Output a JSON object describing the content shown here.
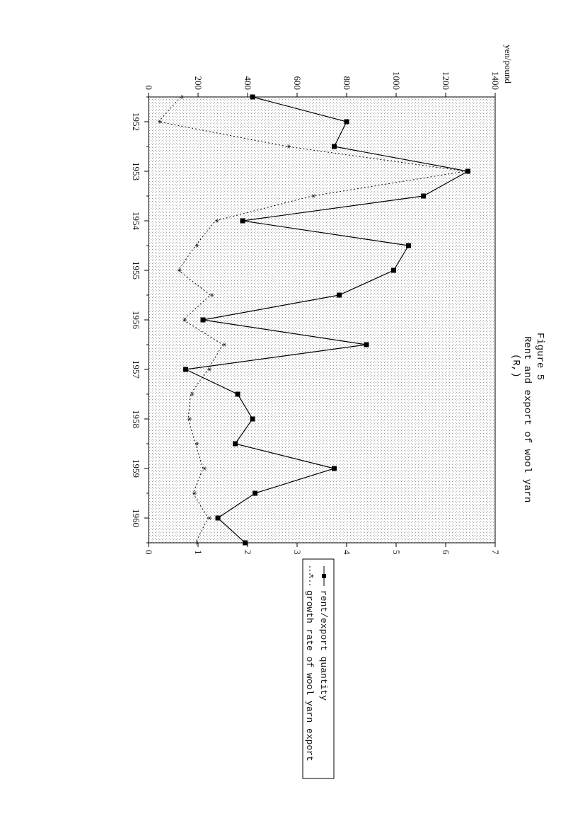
{
  "chart_data": {
    "type": "line",
    "figure_label": "Figure 5",
    "title": "Rent and export of wool yarn",
    "subtitle": "(R,)",
    "left_axis_unit": "yen/pound",
    "left_axis": {
      "min": 0,
      "max": 1400,
      "ticks": [
        "0",
        "200",
        "400",
        "600",
        "800",
        "1000",
        "1200",
        "1400"
      ]
    },
    "right_axis": {
      "min": 0,
      "max": 7,
      "ticks": [
        "0",
        "1",
        "2",
        "3",
        "4",
        "5",
        "6",
        "7"
      ]
    },
    "x_tick_labels": [
      "1952",
      "1953",
      "1954",
      "1955",
      "1956",
      "1957",
      "1958",
      "1959",
      "1960"
    ],
    "x_range": [
      1951.5,
      1960.5
    ],
    "grid": false,
    "legend_placement": "bottom",
    "series": [
      {
        "name": "rent/export quantity",
        "axis": "left",
        "style": "solid-square",
        "x": [
          1951.5,
          1952,
          1952.5,
          1953,
          1953.5,
          1954,
          1954.5,
          1955,
          1955.5,
          1956,
          1956.5,
          1957,
          1957.5,
          1958,
          1958.5,
          1959,
          1959.5,
          1960,
          1960.5
        ],
        "values": [
          420,
          800,
          750,
          1290,
          1110,
          380,
          1050,
          990,
          770,
          220,
          880,
          150,
          360,
          420,
          350,
          750,
          430,
          280,
          390
        ]
      },
      {
        "name": "growth rate of wool yarn export",
        "axis": "right",
        "style": "dotted-star",
        "x": [
          1951.5,
          1952,
          1952.5,
          1953,
          1953.5,
          1954,
          1954.5,
          1955,
          1955.5,
          1956,
          1956.5,
          1957,
          1957.5,
          1958,
          1958.5,
          1959,
          1959.5,
          1960,
          1960.5
        ],
        "values": [
          0.65,
          0.2,
          2.8,
          6.4,
          3.3,
          1.35,
          0.95,
          0.6,
          1.25,
          0.7,
          1.5,
          1.2,
          0.85,
          0.8,
          0.95,
          1.1,
          0.9,
          1.2,
          0.95
        ]
      }
    ]
  }
}
